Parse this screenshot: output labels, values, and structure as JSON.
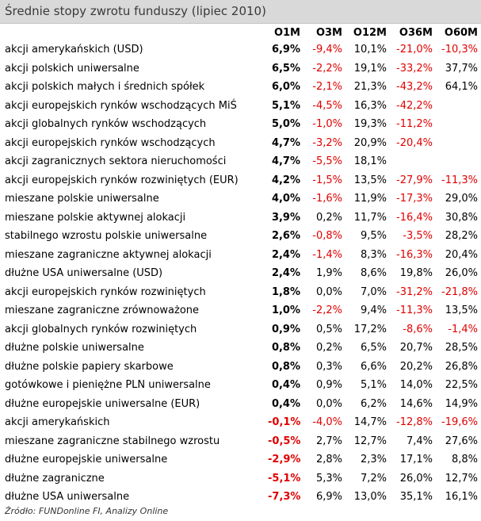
{
  "title": "Średnie stopy zwrotu funduszy (lipiec 2010)",
  "columns": [
    "O1M",
    "O3M",
    "O12M",
    "O36M",
    "O60M"
  ],
  "colors": {
    "negative": "#e00000",
    "header_bg": "#d9d9d9"
  },
  "rows": [
    {
      "name": "akcji amerykańskich (USD)",
      "v": [
        "6,9%",
        "-9,4%",
        "10,1%",
        "-21,0%",
        "-10,3%"
      ]
    },
    {
      "name": "akcji polskich uniwersalne",
      "v": [
        "6,5%",
        "-2,2%",
        "19,1%",
        "-33,2%",
        "37,7%"
      ]
    },
    {
      "name": "akcji polskich małych i średnich spółek",
      "v": [
        "6,0%",
        "-2,1%",
        "21,3%",
        "-43,2%",
        "64,1%"
      ]
    },
    {
      "name": "akcji europejskich rynków wschodzących MiŚ",
      "v": [
        "5,1%",
        "-4,5%",
        "16,3%",
        "-42,2%",
        ""
      ]
    },
    {
      "name": "akcji globalnych rynków wschodzących",
      "v": [
        "5,0%",
        "-1,0%",
        "19,3%",
        "-11,2%",
        ""
      ]
    },
    {
      "name": "akcji europejskich rynków wschodzących",
      "v": [
        "4,7%",
        "-3,2%",
        "20,9%",
        "-20,4%",
        ""
      ]
    },
    {
      "name": "akcji zagranicznych sektora nieruchomości",
      "v": [
        "4,7%",
        "-5,5%",
        "18,1%",
        "",
        ""
      ]
    },
    {
      "name": "akcji europejskich rynków rozwiniętych (EUR)",
      "v": [
        "4,2%",
        "-1,5%",
        "13,5%",
        "-27,9%",
        "-11,3%"
      ]
    },
    {
      "name": "mieszane polskie uniwersalne",
      "v": [
        "4,0%",
        "-1,6%",
        "11,9%",
        "-17,3%",
        "29,0%"
      ]
    },
    {
      "name": "mieszane polskie aktywnej alokacji",
      "v": [
        "3,9%",
        "0,2%",
        "11,7%",
        "-16,4%",
        "30,8%"
      ]
    },
    {
      "name": "stabilnego wzrostu polskie uniwersalne",
      "v": [
        "2,6%",
        "-0,8%",
        "9,5%",
        "-3,5%",
        "28,2%"
      ]
    },
    {
      "name": "mieszane zagraniczne aktywnej alokacji",
      "v": [
        "2,4%",
        "-1,4%",
        "8,3%",
        "-16,3%",
        "20,4%"
      ]
    },
    {
      "name": "dłużne USA uniwersalne (USD)",
      "v": [
        "2,4%",
        "1,9%",
        "8,6%",
        "19,8%",
        "26,0%"
      ]
    },
    {
      "name": "akcji europejskich rynków rozwiniętych",
      "v": [
        "1,8%",
        "0,0%",
        "7,0%",
        "-31,2%",
        "-21,8%"
      ]
    },
    {
      "name": "mieszane zagraniczne zrównoważone",
      "v": [
        "1,0%",
        "-2,2%",
        "9,4%",
        "-11,3%",
        "13,5%"
      ]
    },
    {
      "name": "akcji globalnych rynków rozwiniętych",
      "v": [
        "0,9%",
        "0,5%",
        "17,2%",
        "-8,6%",
        "-1,4%"
      ]
    },
    {
      "name": "dłużne polskie uniwersalne",
      "v": [
        "0,8%",
        "0,2%",
        "6,5%",
        "20,7%",
        "28,5%"
      ]
    },
    {
      "name": "dłużne polskie papiery skarbowe",
      "v": [
        "0,8%",
        "0,3%",
        "6,6%",
        "20,2%",
        "26,8%"
      ]
    },
    {
      "name": "gotówkowe i pieniężne PLN uniwersalne",
      "v": [
        "0,4%",
        "0,9%",
        "5,1%",
        "14,0%",
        "22,5%"
      ]
    },
    {
      "name": "dłużne europejskie uniwersalne (EUR)",
      "v": [
        "0,4%",
        "0,0%",
        "6,2%",
        "14,6%",
        "14,9%"
      ]
    },
    {
      "name": "akcji amerykańskich",
      "v": [
        "-0,1%",
        "-4,0%",
        "14,7%",
        "-12,8%",
        "-19,6%"
      ]
    },
    {
      "name": "mieszane zagraniczne stabilnego wzrostu",
      "v": [
        "-0,5%",
        "2,7%",
        "12,7%",
        "7,4%",
        "27,6%"
      ]
    },
    {
      "name": "dłużne europejskie uniwersalne",
      "v": [
        "-2,9%",
        "2,8%",
        "2,3%",
        "17,1%",
        "8,8%"
      ]
    },
    {
      "name": "dłużne zagraniczne",
      "v": [
        "-5,1%",
        "5,3%",
        "7,2%",
        "26,0%",
        "12,7%"
      ]
    },
    {
      "name": "dłużne USA uniwersalne",
      "v": [
        "-7,3%",
        "6,9%",
        "13,0%",
        "35,1%",
        "16,1%"
      ]
    }
  ],
  "footer": "Źródło: FUNDonline FI, Analizy Online"
}
